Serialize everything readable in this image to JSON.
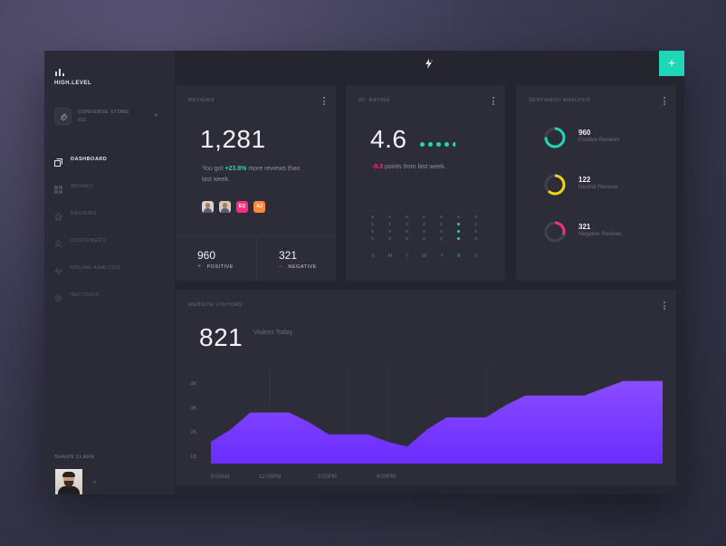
{
  "brand": {
    "name": "HIGH.LEVEL"
  },
  "store": {
    "name": "CONVERSE STORE",
    "number": "#32"
  },
  "nav": [
    {
      "label": "DASHBOARD",
      "icon": "dashboard-icon",
      "active": true
    },
    {
      "label": "WIDGET",
      "icon": "grid-icon",
      "active": false
    },
    {
      "label": "REVIEWS",
      "icon": "star-icon",
      "active": false
    },
    {
      "label": "CUSTOMERS",
      "icon": "user-icon",
      "active": false
    },
    {
      "label": "ONLINE ANALYSIS",
      "icon": "pulse-icon",
      "active": false
    },
    {
      "label": "SETTINGS",
      "icon": "gear-icon",
      "active": false
    }
  ],
  "user": {
    "name": "SHAUN CLARK"
  },
  "accent": "#1fd6b6",
  "reviews": {
    "title": "REVIEWS",
    "total": "1,281",
    "text_pre": "You got ",
    "change": "+23.8%",
    "text_post": " more reviews than last week.",
    "avatars": [
      {
        "type": "photo",
        "label": ""
      },
      {
        "type": "photo",
        "label": ""
      },
      {
        "type": "initials",
        "label": "EQ",
        "color": "#ff2d7a"
      },
      {
        "type": "initials",
        "label": "AJ",
        "color": "#ff8a3d"
      }
    ],
    "positive": {
      "value": "960",
      "label": "POSITIVE"
    },
    "negative": {
      "value": "321",
      "label": "NEGATIVE"
    }
  },
  "rating": {
    "title": "AV. RATING",
    "value": "4.6",
    "change": "-0.3",
    "text_post": " points from last week.",
    "days": [
      "S",
      "M",
      "T",
      "W",
      "T",
      "F",
      "S"
    ],
    "active_day_index": 5,
    "day_levels": [
      1,
      1,
      2,
      2,
      2,
      3,
      2
    ],
    "max_level": 4
  },
  "sentiment": {
    "title": "SENTIMENT ANALYSIS",
    "items": [
      {
        "value": "960",
        "label": "Positive Reviews",
        "color": "#1fd6b6",
        "fraction": 0.75
      },
      {
        "value": "122",
        "label": "Neutral Reviews",
        "color": "#f5d30f",
        "fraction": 0.62
      },
      {
        "value": "321",
        "label": "Negative Reviews",
        "color": "#ff2d7a",
        "fraction": 0.3
      }
    ]
  },
  "visitors": {
    "title": "WEBSITE VISITORS",
    "value": "821",
    "label": "Visitors Today"
  },
  "chart_data": {
    "type": "area",
    "title": "",
    "xlabel": "",
    "ylabel": "",
    "y_ticks": [
      "1K",
      "2K",
      "3K",
      "4K"
    ],
    "ylim": [
      0.7,
      4.5
    ],
    "x_ticks": [
      "9:00AM",
      "12:00PM",
      "3:00PM",
      "6:00PM"
    ],
    "x_tick_positions": [
      0,
      3,
      6,
      9
    ],
    "x": [
      0,
      1,
      2,
      3,
      4,
      5,
      6,
      7,
      8,
      9,
      10,
      11,
      12,
      13,
      14,
      15,
      16,
      17,
      18,
      19,
      20,
      21,
      22,
      23
    ],
    "values": [
      1.6,
      2.1,
      2.8,
      2.8,
      2.8,
      2.4,
      1.9,
      1.9,
      1.9,
      1.6,
      1.4,
      2.1,
      2.6,
      2.6,
      2.6,
      3.1,
      3.5,
      3.5,
      3.5,
      3.5,
      3.8,
      4.1,
      4.1,
      4.1
    ],
    "color": "#7b3dff"
  }
}
